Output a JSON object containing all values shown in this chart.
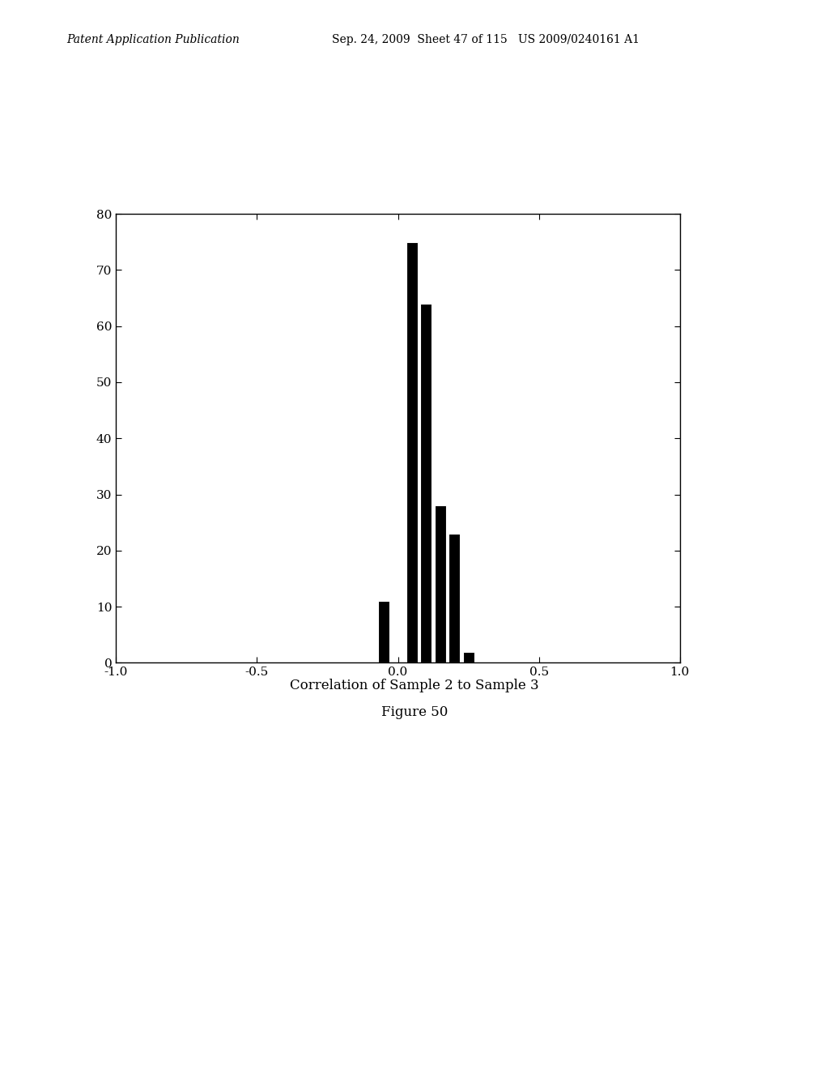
{
  "title": "Correlation of Sample 2 to Sample 3",
  "figure_caption": "Figure 50",
  "bar_color": "#000000",
  "background_color": "#ffffff",
  "xlim": [
    -1.0,
    1.0
  ],
  "ylim": [
    0,
    80
  ],
  "xticks": [
    -1.0,
    -0.5,
    0.0,
    0.5,
    1.0
  ],
  "yticks": [
    0,
    10,
    20,
    30,
    40,
    50,
    60,
    70,
    80
  ],
  "bin_centers": [
    -0.05,
    0.05,
    0.1,
    0.15,
    0.2,
    0.25,
    0.3,
    0.35,
    0.4
  ],
  "bar_heights": [
    11,
    75,
    64,
    28,
    23,
    2,
    0,
    0,
    0
  ],
  "bin_width": 0.04,
  "title_fontsize": 12,
  "caption_fontsize": 12,
  "tick_fontsize": 11,
  "header_italic": "Patent Application Publication",
  "header_normal": "Sep. 24, 2009  Sheet 47 of 115   US 2009/0240161 A1",
  "header_fontsize": 10
}
